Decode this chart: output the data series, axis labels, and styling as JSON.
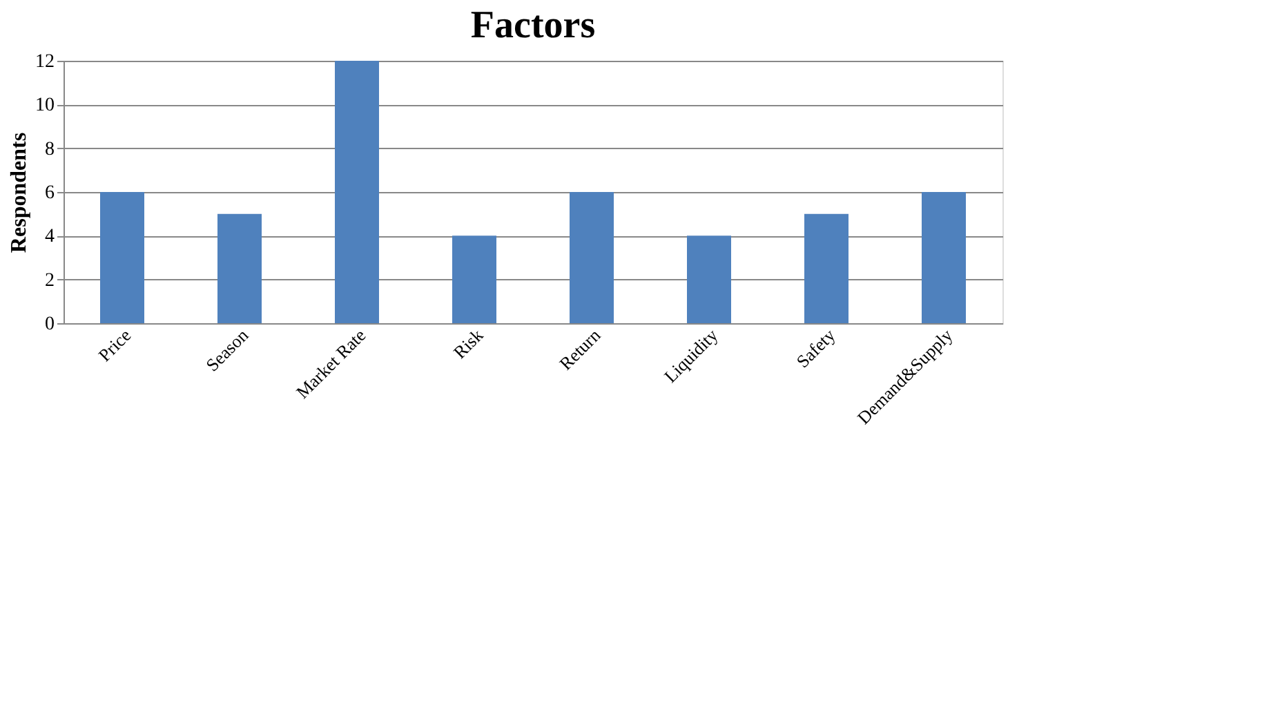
{
  "chart_data": {
    "type": "bar",
    "title": "Factors",
    "ylabel": "Respondents",
    "categories": [
      "Price",
      "Season",
      "Market Rate",
      "Risk",
      "Return",
      "Liquidity",
      "Safety",
      "Demand&Supply"
    ],
    "values": [
      6,
      5,
      12,
      4,
      6,
      4,
      5,
      6
    ],
    "color": "#4f81bd",
    "ylim": [
      0,
      12
    ],
    "yticks": [
      0,
      2,
      4,
      6,
      8,
      10,
      12
    ],
    "grid": "y"
  }
}
